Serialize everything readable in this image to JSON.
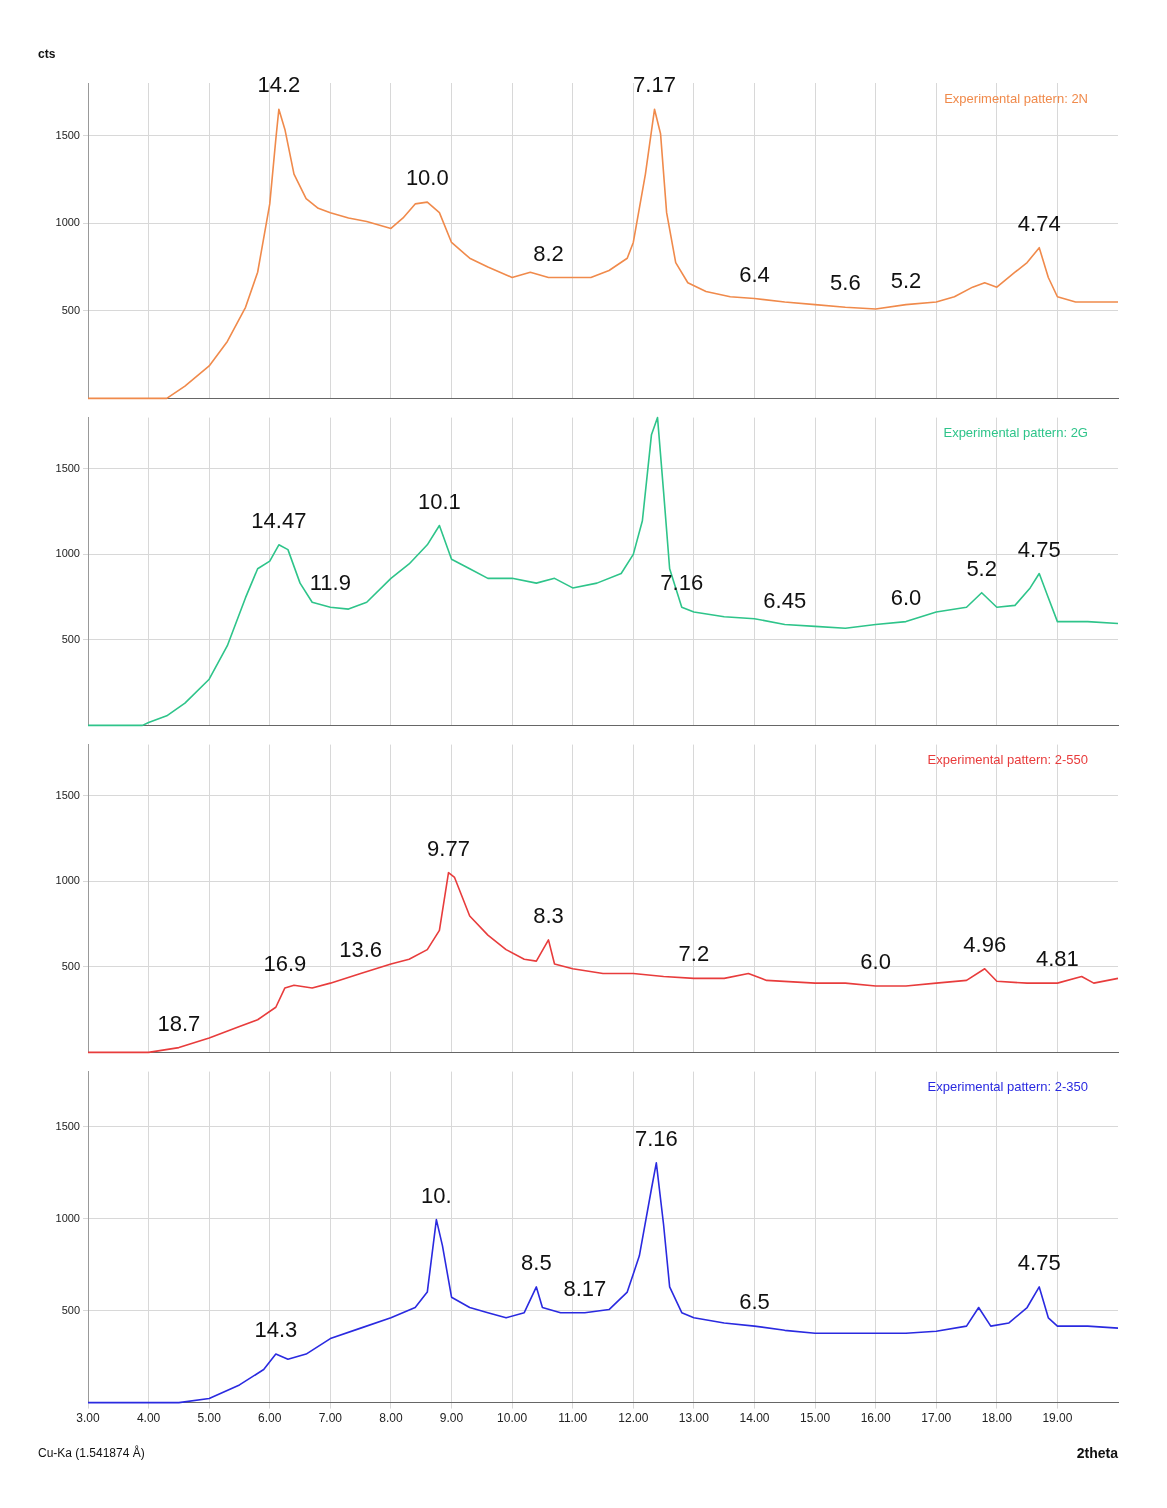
{
  "chart_data": [
    {
      "type": "line",
      "ylabel": "cts",
      "legend": "top right",
      "grid": true,
      "tick_labels": "y",
      "xlim": [
        3,
        20
      ],
      "ylim": [
        0,
        1800
      ],
      "yticks": [
        500,
        1000,
        1500
      ],
      "xticks": [
        {
          "value": 3,
          "label": null
        },
        {
          "value": 4,
          "label": null
        },
        {
          "value": 5,
          "label": null
        },
        {
          "value": 6,
          "label": null
        },
        {
          "value": 7,
          "label": null
        },
        {
          "value": 8,
          "label": null
        },
        {
          "value": 9,
          "label": null
        },
        {
          "value": 10,
          "label": null
        },
        {
          "value": 11,
          "label": null
        },
        {
          "value": 12,
          "label": null
        },
        {
          "value": 13,
          "label": null
        },
        {
          "value": 14,
          "label": null
        },
        {
          "value": 15,
          "label": null
        },
        {
          "value": 16,
          "label": null
        },
        {
          "value": 17,
          "label": null
        },
        {
          "value": 18,
          "label": null
        },
        {
          "value": 19,
          "label": null
        }
      ],
      "x": [
        3,
        4,
        4.3,
        4.6,
        5,
        5.3,
        5.6,
        5.8,
        6,
        6.1,
        6.15,
        6.25,
        6.4,
        6.6,
        6.8,
        7,
        7.3,
        7.6,
        8,
        8.2,
        8.4,
        8.6,
        8.8,
        9,
        9.3,
        9.6,
        10,
        10.3,
        10.6,
        11,
        11.3,
        11.6,
        11.9,
        12,
        12.2,
        12.35,
        12.45,
        12.55,
        12.7,
        12.9,
        13.2,
        13.6,
        14,
        14.5,
        15,
        15.5,
        16,
        16.5,
        17,
        17.3,
        17.6,
        17.8,
        18,
        18.3,
        18.5,
        18.7,
        18.85,
        19,
        19.3,
        20
      ],
      "series": [
        {
          "name": "Experimental pattern: 2N",
          "color": "#f08a4b",
          "values": [
            0,
            0,
            0,
            70,
            185,
            325,
            520,
            720,
            1110,
            1480,
            1650,
            1535,
            1280,
            1140,
            1085,
            1060,
            1030,
            1010,
            970,
            1030,
            1110,
            1120,
            1060,
            890,
            800,
            750,
            690,
            720,
            690,
            690,
            690,
            730,
            800,
            890,
            1280,
            1650,
            1510,
            1060,
            775,
            660,
            610,
            580,
            570,
            550,
            535,
            520,
            510,
            535,
            550,
            580,
            635,
            660,
            635,
            720,
            775,
            860,
            690,
            580,
            550,
            550
          ]
        }
      ],
      "annotations": [
        {
          "text": "14.2",
          "x": 6.15,
          "y": 1650
        },
        {
          "text": "7.17",
          "x": 12.35,
          "y": 1650
        },
        {
          "text": "10.0",
          "x": 8.6,
          "y": 1120
        },
        {
          "text": "8.2",
          "x": 10.6,
          "y": 690
        },
        {
          "text": "6.4",
          "x": 14,
          "y": 570
        },
        {
          "text": "5.6",
          "x": 15.5,
          "y": 520
        },
        {
          "text": "5.2",
          "x": 16.5,
          "y": 535
        },
        {
          "text": "4.74",
          "x": 18.7,
          "y": 860
        }
      ]
    },
    {
      "type": "line",
      "legend": "top right",
      "grid": true,
      "tick_labels": "y",
      "xlim": [
        3,
        20
      ],
      "ylim": [
        0,
        1800
      ],
      "yticks": [
        500,
        1000,
        1500
      ],
      "xticks": [
        {
          "value": 3,
          "label": null
        },
        {
          "value": 4,
          "label": null
        },
        {
          "value": 5,
          "label": null
        },
        {
          "value": 6,
          "label": null
        },
        {
          "value": 7,
          "label": null
        },
        {
          "value": 8,
          "label": null
        },
        {
          "value": 9,
          "label": null
        },
        {
          "value": 10,
          "label": null
        },
        {
          "value": 11,
          "label": null
        },
        {
          "value": 12,
          "label": null
        },
        {
          "value": 13,
          "label": null
        },
        {
          "value": 14,
          "label": null
        },
        {
          "value": 15,
          "label": null
        },
        {
          "value": 16,
          "label": null
        },
        {
          "value": 17,
          "label": null
        },
        {
          "value": 18,
          "label": null
        },
        {
          "value": 19,
          "label": null
        }
      ],
      "x": [
        3,
        3.9,
        4,
        4.3,
        4.6,
        5,
        5.3,
        5.6,
        5.8,
        6,
        6.15,
        6.3,
        6.5,
        6.7,
        7,
        7.3,
        7.6,
        8,
        8.3,
        8.6,
        8.8,
        9,
        9.3,
        9.6,
        10,
        10.4,
        10.7,
        11,
        11.4,
        11.8,
        12,
        12.15,
        12.3,
        12.4,
        12.5,
        12.6,
        12.8,
        13,
        13.5,
        14,
        14.5,
        15,
        15.5,
        16,
        16.5,
        17,
        17.5,
        17.75,
        18,
        18.3,
        18.55,
        18.7,
        18.85,
        19,
        19.5,
        20
      ],
      "series": [
        {
          "name": "Experimental pattern: 2G",
          "color": "#2ec48a",
          "values": [
            0,
            0,
            17,
            56,
            130,
            270,
            466,
            747,
            916,
            961,
            1056,
            1028,
            832,
            720,
            691,
            680,
            720,
            860,
            944,
            1056,
            1169,
            972,
            916,
            860,
            860,
            832,
            860,
            804,
            832,
            888,
            1000,
            1197,
            1700,
            1800,
            1366,
            916,
            691,
            663,
            635,
            624,
            590,
            579,
            568,
            590,
            607,
            663,
            691,
            776,
            691,
            702,
            804,
            888,
            747,
            607,
            607,
            596
          ]
        }
      ],
      "annotations": [
        {
          "text": "10.1",
          "x": 8.8,
          "y": 1169
        },
        {
          "text": "14.47",
          "x": 6.15,
          "y": 1056
        },
        {
          "text": "11.9",
          "x": 7,
          "y": 691
        },
        {
          "text": "7.16",
          "x": 12.8,
          "y": 691
        },
        {
          "text": "6.45",
          "x": 14.5,
          "y": 590
        },
        {
          "text": "6.0",
          "x": 16.5,
          "y": 607
        },
        {
          "text": "5.2",
          "x": 17.75,
          "y": 776
        },
        {
          "text": "4.75",
          "x": 18.7,
          "y": 888
        }
      ]
    },
    {
      "type": "line",
      "legend": "top right",
      "grid": true,
      "tick_labels": "y",
      "xlim": [
        3,
        20
      ],
      "ylim": [
        0,
        1800
      ],
      "yticks": [
        500,
        1000,
        1500
      ],
      "xticks": [
        {
          "value": 3,
          "label": null
        },
        {
          "value": 4,
          "label": null
        },
        {
          "value": 5,
          "label": null
        },
        {
          "value": 6,
          "label": null
        },
        {
          "value": 7,
          "label": null
        },
        {
          "value": 8,
          "label": null
        },
        {
          "value": 9,
          "label": null
        },
        {
          "value": 10,
          "label": null
        },
        {
          "value": 11,
          "label": null
        },
        {
          "value": 12,
          "label": null
        },
        {
          "value": 13,
          "label": null
        },
        {
          "value": 14,
          "label": null
        },
        {
          "value": 15,
          "label": null
        },
        {
          "value": 16,
          "label": null
        },
        {
          "value": 17,
          "label": null
        },
        {
          "value": 18,
          "label": null
        },
        {
          "value": 19,
          "label": null
        }
      ],
      "x": [
        3,
        4,
        4.5,
        5,
        5.5,
        5.8,
        6.1,
        6.25,
        6.4,
        6.7,
        7,
        7.5,
        8,
        8.3,
        8.6,
        8.8,
        8.95,
        9.05,
        9.3,
        9.6,
        9.9,
        10.2,
        10.4,
        10.6,
        10.7,
        11,
        11.5,
        12,
        12.5,
        13,
        13.5,
        13.9,
        14.2,
        15,
        15.5,
        16,
        16.5,
        17,
        17.5,
        17.8,
        18,
        18.5,
        19,
        19.4,
        19.6,
        20
      ],
      "series": [
        {
          "name": "Experimental pattern: 2-550",
          "color": "#e83c3c",
          "values": [
            0,
            0,
            28,
            84,
            152,
            191,
            264,
            377,
            393,
            377,
            405,
            461,
            517,
            545,
            601,
            714,
            1051,
            1023,
            798,
            686,
            601,
            545,
            534,
            658,
            517,
            489,
            461,
            461,
            444,
            433,
            433,
            461,
            421,
            405,
            405,
            388,
            388,
            405,
            421,
            489,
            416,
            405,
            405,
            444,
            405,
            433
          ]
        }
      ],
      "annotations": [
        {
          "text": "9.77",
          "x": 8.95,
          "y": 1051
        },
        {
          "text": "16.9",
          "x": 6.25,
          "y": 377
        },
        {
          "text": "13.6",
          "x": 7.5,
          "y": 461
        },
        {
          "text": "8.3",
          "x": 10.6,
          "y": 658
        },
        {
          "text": "7.2",
          "x": 13,
          "y": 433
        },
        {
          "text": "6.0",
          "x": 16,
          "y": 388
        },
        {
          "text": "4.96",
          "x": 17.8,
          "y": 489
        },
        {
          "text": "4.81",
          "x": 19,
          "y": 405
        },
        {
          "text": "18.7",
          "x": 4.5,
          "y": 28
        }
      ]
    },
    {
      "type": "line",
      "xlabel": "2theta",
      "legend": "top right",
      "grid": true,
      "xlim": [
        3,
        20
      ],
      "ylim": [
        0,
        1800
      ],
      "yticks": [
        500,
        1000,
        1500
      ],
      "xticks": [
        {
          "value": 3,
          "label": "3.00"
        },
        {
          "value": 4,
          "label": "4.00"
        },
        {
          "value": 5,
          "label": "5.00"
        },
        {
          "value": 6,
          "label": "6.00"
        },
        {
          "value": 7,
          "label": "7.00"
        },
        {
          "value": 8,
          "label": "8.00"
        },
        {
          "value": 9,
          "label": "9.00"
        },
        {
          "value": 10,
          "label": "10.00"
        },
        {
          "value": 11,
          "label": "11.00"
        },
        {
          "value": 12,
          "label": "12.00"
        },
        {
          "value": 13,
          "label": "13.00"
        },
        {
          "value": 14,
          "label": "14.00"
        },
        {
          "value": 15,
          "label": "15.00"
        },
        {
          "value": 16,
          "label": "16.00"
        },
        {
          "value": 17,
          "label": "17.00"
        },
        {
          "value": 18,
          "label": "18.00"
        },
        {
          "value": 19,
          "label": "19.00"
        }
      ],
      "x": [
        3,
        4.5,
        5,
        5.5,
        5.9,
        6.1,
        6.3,
        6.6,
        7,
        7.5,
        8,
        8.4,
        8.6,
        8.75,
        8.85,
        9,
        9.3,
        9.6,
        9.9,
        10.2,
        10.4,
        10.5,
        10.8,
        11.2,
        11.6,
        11.9,
        12.1,
        12.3,
        12.38,
        12.5,
        12.6,
        12.8,
        13,
        13.5,
        14,
        14.5,
        15,
        15.5,
        16,
        16.5,
        17,
        17.5,
        17.7,
        17.9,
        18.2,
        18.5,
        18.7,
        18.85,
        19,
        19.5,
        20
      ],
      "series": [
        {
          "name": "Experimental pattern: 2-350",
          "color": "#2a2ae0",
          "values": [
            0,
            0,
            22,
            96,
            180,
            264,
            236,
            264,
            348,
            405,
            461,
            517,
            601,
            995,
            854,
            573,
            517,
            489,
            461,
            489,
            629,
            517,
            489,
            489,
            506,
            601,
            798,
            1163,
            1304,
            967,
            629,
            489,
            461,
            433,
            416,
            393,
            377,
            377,
            377,
            377,
            388,
            416,
            517,
            416,
            433,
            517,
            629,
            461,
            416,
            416,
            405
          ]
        }
      ],
      "annotations": [
        {
          "text": "7.16",
          "x": 12.38,
          "y": 1304
        },
        {
          "text": "10.",
          "x": 8.75,
          "y": 995
        },
        {
          "text": "8.5",
          "x": 10.4,
          "y": 629
        },
        {
          "text": "8.17",
          "x": 11.2,
          "y": 489
        },
        {
          "text": "6.5",
          "x": 14,
          "y": 416
        },
        {
          "text": "4.75",
          "x": 18.7,
          "y": 629
        },
        {
          "text": "14.3",
          "x": 6.1,
          "y": 264
        },
        "Cu-Ka (1.541874 Å)"
      ]
    }
  ]
}
